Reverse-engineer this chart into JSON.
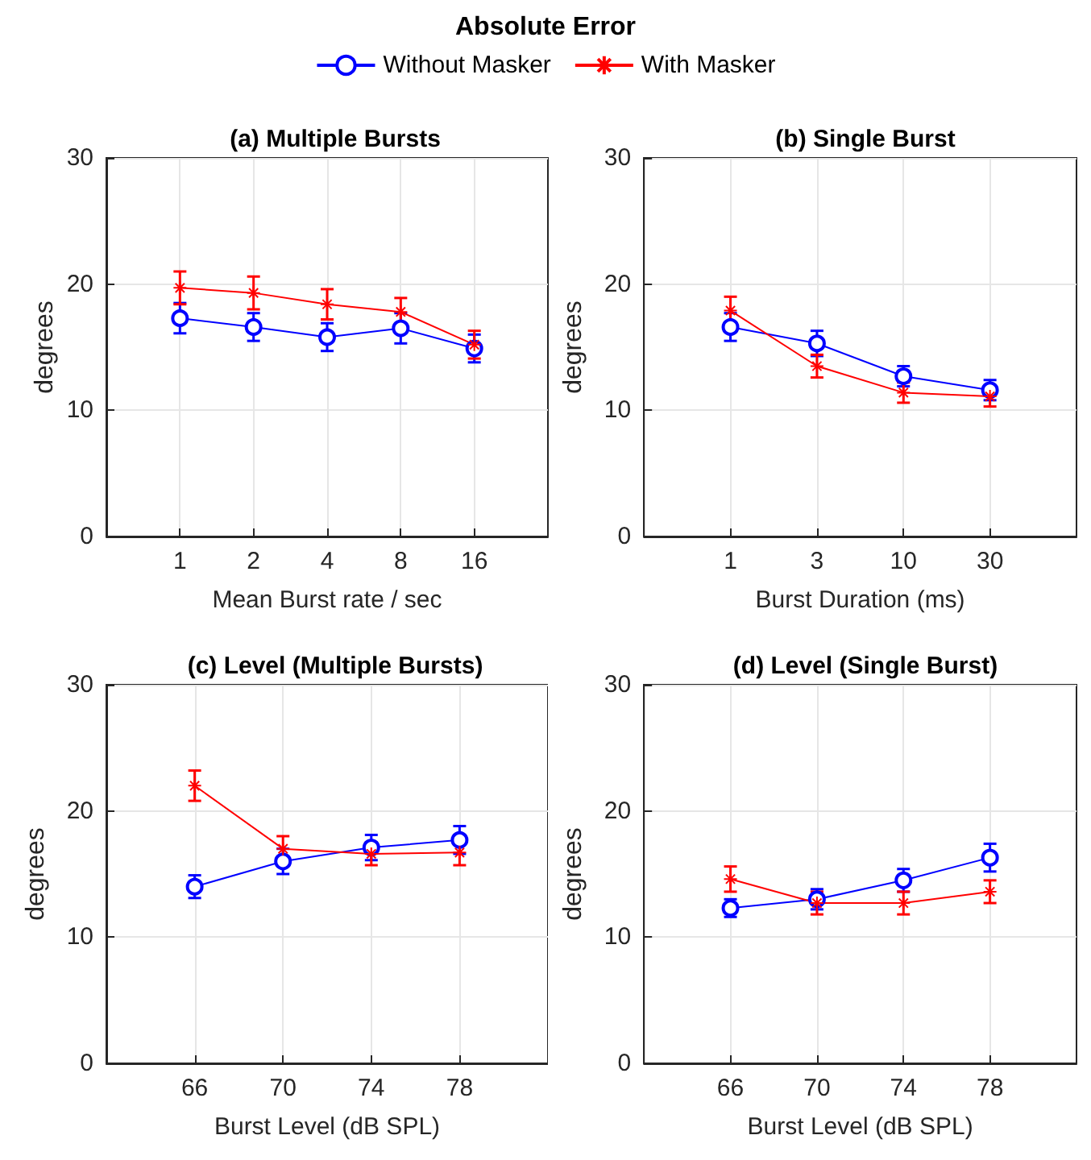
{
  "chart_data": [
    {
      "type": "line",
      "title": "(a) Multiple Bursts",
      "annotations": [
        "Absolute Error"
      ],
      "xlabel": "Mean Burst rate / sec",
      "ylabel": "degrees",
      "categories": [
        "1",
        "2",
        "4",
        "8",
        "16"
      ],
      "ylim": [
        0,
        30
      ],
      "yticks": [
        0,
        10,
        20,
        30
      ],
      "grid": true,
      "legend": "top",
      "series": [
        {
          "name": "Without Masker",
          "color": "#0000ff",
          "marker": "circle",
          "values": [
            17.3,
            16.6,
            15.8,
            16.5,
            14.9
          ],
          "errors": [
            1.2,
            1.1,
            1.1,
            1.2,
            1.1
          ]
        },
        {
          "name": "With Masker",
          "color": "#ff0000",
          "marker": "cross",
          "values": [
            19.7,
            19.3,
            18.4,
            17.8,
            15.2
          ],
          "errors": [
            1.3,
            1.3,
            1.2,
            1.1,
            1.1
          ]
        }
      ]
    },
    {
      "type": "line",
      "title": "(b) Single Burst",
      "xlabel": "Burst Duration (ms)",
      "ylabel": "degrees",
      "categories": [
        "1",
        "3",
        "10",
        "30"
      ],
      "ylim": [
        0,
        30
      ],
      "yticks": [
        0,
        10,
        20,
        30
      ],
      "grid": true,
      "series": [
        {
          "color": "#0000ff",
          "marker": "circle",
          "values": [
            16.6,
            15.3,
            12.7,
            11.6
          ],
          "errors": [
            1.1,
            1.0,
            0.8,
            0.8
          ]
        },
        {
          "color": "#ff0000",
          "marker": "cross",
          "values": [
            17.9,
            13.5,
            11.4,
            11.1
          ],
          "errors": [
            1.1,
            0.9,
            0.8,
            0.8
          ]
        }
      ]
    },
    {
      "type": "line",
      "title": "(c) Level (Multiple Bursts)",
      "xlabel": "Burst Level (dB SPL)",
      "ylabel": "degrees",
      "categories": [
        "66",
        "70",
        "74",
        "78"
      ],
      "ylim": [
        0,
        30
      ],
      "yticks": [
        0,
        10,
        20,
        30
      ],
      "grid": true,
      "series": [
        {
          "color": "#0000ff",
          "marker": "circle",
          "values": [
            14.0,
            16.0,
            17.1,
            17.7
          ],
          "errors": [
            0.9,
            1.0,
            1.0,
            1.1
          ]
        },
        {
          "color": "#ff0000",
          "marker": "cross",
          "values": [
            22.0,
            17.0,
            16.6,
            16.7
          ],
          "errors": [
            1.2,
            1.0,
            0.9,
            1.0
          ]
        }
      ]
    },
    {
      "type": "line",
      "title": "(d) Level (Single Burst)",
      "xlabel": "Burst Level (dB SPL)",
      "ylabel": "degrees",
      "categories": [
        "66",
        "70",
        "74",
        "78"
      ],
      "ylim": [
        0,
        30
      ],
      "yticks": [
        0,
        10,
        20,
        30
      ],
      "grid": true,
      "series": [
        {
          "color": "#0000ff",
          "marker": "circle",
          "values": [
            12.3,
            13.0,
            14.5,
            16.3
          ],
          "errors": [
            0.7,
            0.8,
            0.9,
            1.1
          ]
        },
        {
          "color": "#ff0000",
          "marker": "cross",
          "values": [
            14.6,
            12.7,
            12.7,
            13.6
          ],
          "errors": [
            1.0,
            0.9,
            0.9,
            0.9
          ]
        }
      ]
    }
  ]
}
